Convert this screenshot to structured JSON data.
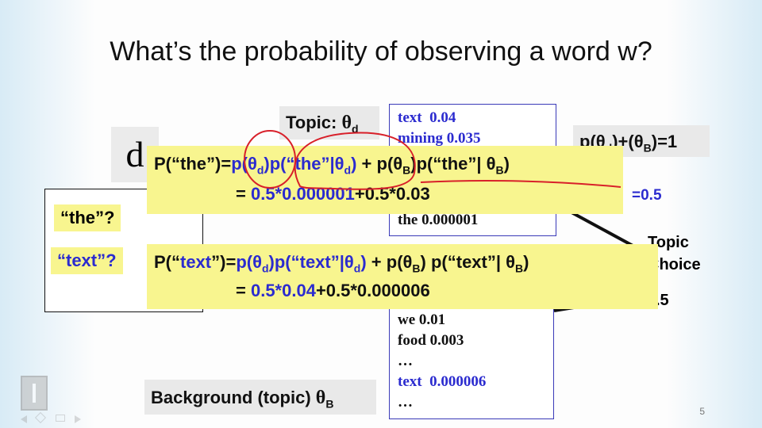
{
  "slide": {
    "title": "What’s the probability of observing a word w?",
    "page_number": "5"
  },
  "topic_label": {
    "text": "Topic: ",
    "symbol": "θ",
    "sub": "d"
  },
  "background_label": {
    "text": "Background (topic) ",
    "symbol": "θ",
    "sub": "B"
  },
  "doc_letter": "d",
  "topic_words": [
    {
      "word": "text",
      "prob": "0.04"
    },
    {
      "word": "mining",
      "prob": "0.035"
    },
    {
      "word": "the",
      "prob": "0.000001"
    }
  ],
  "background_words": [
    {
      "word": "we",
      "prob": "0.01"
    },
    {
      "word": "food",
      "prob": "0.003"
    },
    {
      "word": "…",
      "prob": ""
    },
    {
      "word": "text",
      "prob": "0.000006"
    },
    {
      "word": "…",
      "prob": ""
    }
  ],
  "constraint": {
    "text": "p(θ",
    "sub1": "d",
    "mid": ")+(θ",
    "sub2": "B",
    "end": ")=1"
  },
  "prob_half": "=0.5",
  "topic_choice": {
    "line1": "Topic",
    "line2": "Choice",
    "half": ".5"
  },
  "questions": {
    "the": "“the”?",
    "text": "“text”?"
  },
  "formula_the": {
    "lhs": "P(“the”)=",
    "p_theta": "p(θ",
    "sub_d": "d",
    "close": ")",
    "p_word": "p(“the”|θ",
    "plus": " + p(θ",
    "sub_b": "B",
    "tail": ")p(“the”| θ",
    "end": ")",
    "eq2_pre": "= ",
    "eq2_blue": "0.5*0.000001",
    "eq2_rest": "+0.5*0.03"
  },
  "formula_text": {
    "lhs_pre": "P(“",
    "lhs_word": "text",
    "lhs_post": "”)=",
    "p_theta": "p(θ",
    "sub_d": "d",
    "close": ")",
    "p_word_pre": "p(“",
    "p_word_word": "text",
    "p_word_post": "”|θ",
    "plus": " + p(θ",
    "sub_b": "B",
    "tail": ") p(“text”| θ",
    "end": ")",
    "eq2_pre": "= ",
    "eq2_blue": "0.5*0.04",
    "eq2_rest": "+0.5*0.000006"
  },
  "colors": {
    "blue": "#2b2bcf",
    "yellow": "#f8f58f",
    "red_ink": "#d8202a"
  }
}
